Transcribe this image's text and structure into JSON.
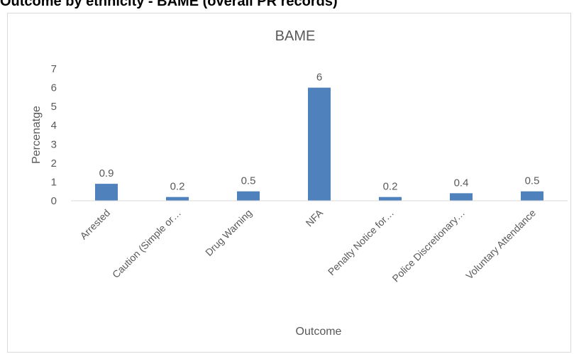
{
  "page": {
    "heading": "Outcome by ethnicity - BAME (overall PR records)"
  },
  "colors": {
    "bar": "#4f81bd",
    "text": "#595959",
    "gridline": "#d9d9d9",
    "axis": "#d9d9d9"
  },
  "chart_data": {
    "type": "bar",
    "title": "BAME",
    "xlabel": "Outcome",
    "ylabel": "Percenatge",
    "categories": [
      "Arrested",
      "Caution (Simple or…",
      "Drug Warning",
      "NFA",
      "Penalty Notice for…",
      "Police Discretionary…",
      "Voluntary Attendance"
    ],
    "values": [
      0.9,
      0.2,
      0.5,
      6,
      0.2,
      0.4,
      0.5
    ],
    "data_labels": [
      "0.9",
      "0.2",
      "0.5",
      "6",
      "0.2",
      "0.4",
      "0.5"
    ],
    "ylim": [
      0,
      7
    ],
    "yticks": [
      0,
      1,
      2,
      3,
      4,
      5,
      6,
      7
    ],
    "grid": false,
    "legend": "none"
  }
}
